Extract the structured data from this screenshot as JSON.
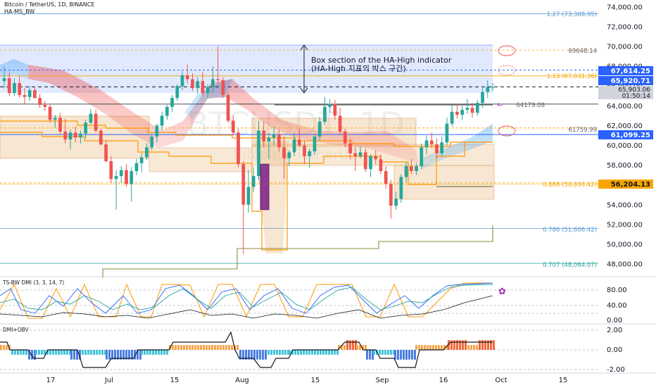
{
  "header": {
    "symbol": "Bitcoin / TetherUS, 1D, BINANCE",
    "indicator": "HA-MS_BW"
  },
  "watermark": {
    "big": "BTCUSDT, 1D",
    "small": "Bitcoin / TetherUS"
  },
  "annotation": {
    "line1": "Box section of the HA-High indicator",
    "line2": "(HA-High 지표의 박스 구간)"
  },
  "colors": {
    "up": "#26a69a",
    "down": "#ef5350",
    "orange": "#ff9800",
    "blue": "#2962ff",
    "gray": "#787b86"
  },
  "price_axis": {
    "ticks": [
      "74,000.00",
      "72,000.00",
      "70,000.00",
      "68,000.00",
      "66,000.00",
      "64,000.00",
      "62,000.00",
      "60,000.00",
      "58,000.00",
      "56,000.00",
      "54,000.00",
      "52,000.00",
      "50,000.00",
      "48,000.00"
    ]
  },
  "price_badges": [
    {
      "text": "67,614.25",
      "color": "#2962ff"
    },
    {
      "text": "65,920.71",
      "color": "#2962ff"
    },
    {
      "text": "65,903.06",
      "color": "#d1d4dc"
    },
    {
      "text": "01:50:14",
      "color": "#d1d4dc"
    },
    {
      "text": "61,099.25",
      "color": "#2962ff"
    },
    {
      "text": "56,204.13",
      "color": "#f7a600"
    }
  ],
  "fib_labels": [
    {
      "text": "1.27 (73,308.95)"
    },
    {
      "text": "1.13 (67,031.36)"
    },
    {
      "text": "0.886 (56,090.42)"
    },
    {
      "text": "0.786 (51,606.42)"
    },
    {
      "text": "0.707 (48,064.07)"
    }
  ],
  "level_labels": [
    {
      "text": "69648.14"
    },
    {
      "text": "64179.08"
    },
    {
      "text": "61759.99"
    }
  ],
  "dmi_panel": {
    "title": "TS-BW DMI (3, 3, 14, 7)",
    "ticks": [
      "80.00",
      "40.00",
      "0.00"
    ]
  },
  "obv_panel": {
    "title": "DMI+OBV",
    "ticks": [
      "2.00",
      "0.00",
      "-2.00"
    ]
  },
  "time_axis": {
    "labels": [
      "17",
      "Jul",
      "15",
      "Aug",
      "15",
      "Sep",
      "16",
      "Oct",
      "15"
    ]
  },
  "chart_data": {
    "type": "candlestick",
    "title": "Bitcoin / TetherUS, 1D, BINANCE",
    "ylim": [
      46500,
      75000
    ],
    "candles": [
      {
        "o": 66500,
        "h": 68000,
        "l": 65800,
        "c": 66800
      },
      {
        "o": 66800,
        "h": 67400,
        "l": 65000,
        "c": 65300
      },
      {
        "o": 65300,
        "h": 66800,
        "l": 65000,
        "c": 66300
      },
      {
        "o": 66300,
        "h": 67000,
        "l": 64800,
        "c": 65100
      },
      {
        "o": 65100,
        "h": 65800,
        "l": 64200,
        "c": 64900
      },
      {
        "o": 64900,
        "h": 66000,
        "l": 64500,
        "c": 65600
      },
      {
        "o": 65600,
        "h": 65900,
        "l": 64700,
        "c": 64800
      },
      {
        "o": 64800,
        "h": 65200,
        "l": 63800,
        "c": 64100
      },
      {
        "o": 64100,
        "h": 64500,
        "l": 63500,
        "c": 63900
      },
      {
        "o": 63900,
        "h": 64200,
        "l": 62300,
        "c": 62600
      },
      {
        "o": 62600,
        "h": 63100,
        "l": 61800,
        "c": 62800
      },
      {
        "o": 62800,
        "h": 63300,
        "l": 61100,
        "c": 61400
      },
      {
        "o": 61400,
        "h": 62700,
        "l": 60200,
        "c": 60600
      },
      {
        "o": 60600,
        "h": 61600,
        "l": 59600,
        "c": 61300
      },
      {
        "o": 61300,
        "h": 61900,
        "l": 60300,
        "c": 60800
      },
      {
        "o": 60800,
        "h": 61500,
        "l": 60200,
        "c": 61200
      },
      {
        "o": 61200,
        "h": 62600,
        "l": 60700,
        "c": 62300
      },
      {
        "o": 62300,
        "h": 63700,
        "l": 62100,
        "c": 63200
      },
      {
        "o": 63200,
        "h": 63600,
        "l": 61300,
        "c": 61500
      },
      {
        "o": 61500,
        "h": 61700,
        "l": 60000,
        "c": 60100
      },
      {
        "o": 60100,
        "h": 60500,
        "l": 58300,
        "c": 58400
      },
      {
        "o": 58400,
        "h": 58900,
        "l": 56200,
        "c": 56600
      },
      {
        "o": 56600,
        "h": 57500,
        "l": 53500,
        "c": 56900
      },
      {
        "o": 56900,
        "h": 57900,
        "l": 56200,
        "c": 57500
      },
      {
        "o": 57500,
        "h": 58100,
        "l": 55800,
        "c": 56100
      },
      {
        "o": 56100,
        "h": 57800,
        "l": 54300,
        "c": 57400
      },
      {
        "o": 57400,
        "h": 58600,
        "l": 57000,
        "c": 58200
      },
      {
        "o": 58200,
        "h": 59200,
        "l": 57300,
        "c": 58800
      },
      {
        "o": 58800,
        "h": 60200,
        "l": 58500,
        "c": 59800
      },
      {
        "o": 59800,
        "h": 61200,
        "l": 59500,
        "c": 60900
      },
      {
        "o": 60900,
        "h": 62200,
        "l": 60300,
        "c": 62000
      },
      {
        "o": 62000,
        "h": 63400,
        "l": 61500,
        "c": 63000
      },
      {
        "o": 63000,
        "h": 64100,
        "l": 62600,
        "c": 63900
      },
      {
        "o": 63900,
        "h": 65100,
        "l": 63400,
        "c": 64800
      },
      {
        "o": 64800,
        "h": 66200,
        "l": 64500,
        "c": 66000
      },
      {
        "o": 66000,
        "h": 67500,
        "l": 65600,
        "c": 67100
      },
      {
        "o": 67100,
        "h": 68200,
        "l": 66300,
        "c": 66700
      },
      {
        "o": 66700,
        "h": 67300,
        "l": 65500,
        "c": 65800
      },
      {
        "o": 65800,
        "h": 66900,
        "l": 65200,
        "c": 66500
      },
      {
        "o": 66500,
        "h": 67400,
        "l": 65000,
        "c": 65300
      },
      {
        "o": 65300,
        "h": 66200,
        "l": 64800,
        "c": 65900
      },
      {
        "o": 65900,
        "h": 68000,
        "l": 65300,
        "c": 66700
      },
      {
        "o": 66700,
        "h": 70000,
        "l": 66200,
        "c": 66600
      },
      {
        "o": 66600,
        "h": 66900,
        "l": 64800,
        "c": 65100
      },
      {
        "o": 65100,
        "h": 65400,
        "l": 62300,
        "c": 62500
      },
      {
        "o": 62500,
        "h": 63000,
        "l": 61000,
        "c": 61300
      },
      {
        "o": 61300,
        "h": 61700,
        "l": 57800,
        "c": 58100
      },
      {
        "o": 58100,
        "h": 58400,
        "l": 49000,
        "c": 54000
      },
      {
        "o": 54000,
        "h": 57500,
        "l": 53200,
        "c": 55800
      },
      {
        "o": 55800,
        "h": 57800,
        "l": 55300,
        "c": 56900
      },
      {
        "o": 56900,
        "h": 62500,
        "l": 56500,
        "c": 61500
      },
      {
        "o": 61500,
        "h": 62400,
        "l": 59800,
        "c": 60400
      },
      {
        "o": 60400,
        "h": 61300,
        "l": 58600,
        "c": 60800
      },
      {
        "o": 60800,
        "h": 61900,
        "l": 60000,
        "c": 61100
      },
      {
        "o": 61100,
        "h": 61600,
        "l": 59400,
        "c": 59800
      },
      {
        "o": 59800,
        "h": 60900,
        "l": 56600,
        "c": 58700
      },
      {
        "o": 58700,
        "h": 59500,
        "l": 57900,
        "c": 59300
      },
      {
        "o": 59300,
        "h": 61300,
        "l": 58900,
        "c": 60600
      },
      {
        "o": 60600,
        "h": 61700,
        "l": 59800,
        "c": 60000
      },
      {
        "o": 60000,
        "h": 60500,
        "l": 58100,
        "c": 58900
      },
      {
        "o": 58900,
        "h": 59700,
        "l": 57700,
        "c": 59400
      },
      {
        "o": 59400,
        "h": 61200,
        "l": 59000,
        "c": 60900
      },
      {
        "o": 60900,
        "h": 62900,
        "l": 60500,
        "c": 62400
      },
      {
        "o": 62400,
        "h": 64900,
        "l": 62100,
        "c": 63900
      },
      {
        "o": 63900,
        "h": 64700,
        "l": 63300,
        "c": 64200
      },
      {
        "o": 64200,
        "h": 64600,
        "l": 62600,
        "c": 63000
      },
      {
        "o": 63000,
        "h": 63800,
        "l": 61100,
        "c": 61400
      },
      {
        "o": 61400,
        "h": 61700,
        "l": 59800,
        "c": 60200
      },
      {
        "o": 60200,
        "h": 60700,
        "l": 58600,
        "c": 59200
      },
      {
        "o": 59200,
        "h": 59800,
        "l": 57400,
        "c": 58900
      },
      {
        "o": 58900,
        "h": 59900,
        "l": 58700,
        "c": 59300
      },
      {
        "o": 59300,
        "h": 59700,
        "l": 57300,
        "c": 57600
      },
      {
        "o": 57600,
        "h": 59100,
        "l": 56800,
        "c": 58900
      },
      {
        "o": 58900,
        "h": 59500,
        "l": 58100,
        "c": 58600
      },
      {
        "o": 58600,
        "h": 59100,
        "l": 57100,
        "c": 57400
      },
      {
        "o": 57400,
        "h": 57900,
        "l": 55600,
        "c": 56100
      },
      {
        "o": 56100,
        "h": 56500,
        "l": 52600,
        "c": 53900
      },
      {
        "o": 53900,
        "h": 55300,
        "l": 53500,
        "c": 54600
      },
      {
        "o": 54600,
        "h": 57100,
        "l": 54200,
        "c": 56800
      },
      {
        "o": 56800,
        "h": 58300,
        "l": 56300,
        "c": 57900
      },
      {
        "o": 57900,
        "h": 58600,
        "l": 57100,
        "c": 57400
      },
      {
        "o": 57400,
        "h": 58200,
        "l": 57000,
        "c": 57900
      },
      {
        "o": 57900,
        "h": 60200,
        "l": 57600,
        "c": 59800
      },
      {
        "o": 59800,
        "h": 61000,
        "l": 59100,
        "c": 60500
      },
      {
        "o": 60500,
        "h": 61300,
        "l": 59700,
        "c": 60100
      },
      {
        "o": 60100,
        "h": 60700,
        "l": 58700,
        "c": 59200
      },
      {
        "o": 59200,
        "h": 60900,
        "l": 58900,
        "c": 60300
      },
      {
        "o": 60300,
        "h": 62800,
        "l": 60000,
        "c": 62200
      },
      {
        "o": 62200,
        "h": 64100,
        "l": 61900,
        "c": 63400
      },
      {
        "o": 63400,
        "h": 64200,
        "l": 62700,
        "c": 63100
      },
      {
        "o": 63100,
        "h": 64000,
        "l": 62600,
        "c": 63600
      },
      {
        "o": 63600,
        "h": 64700,
        "l": 63200,
        "c": 63800
      },
      {
        "o": 63800,
        "h": 64300,
        "l": 62800,
        "c": 63300
      },
      {
        "o": 63300,
        "h": 64600,
        "l": 63000,
        "c": 64300
      },
      {
        "o": 64300,
        "h": 65800,
        "l": 63800,
        "c": 65400
      },
      {
        "o": 65400,
        "h": 66600,
        "l": 64800,
        "c": 65900
      },
      {
        "o": 65900,
        "h": 66300,
        "l": 65500,
        "c": 65903
      }
    ],
    "horizontal_levels": [
      73308.95,
      69648.14,
      67614.25,
      67031.36,
      65920.71,
      64179.08,
      61759.99,
      61099.25,
      56204.13,
      56090.42,
      51606.42,
      48064.07
    ]
  }
}
